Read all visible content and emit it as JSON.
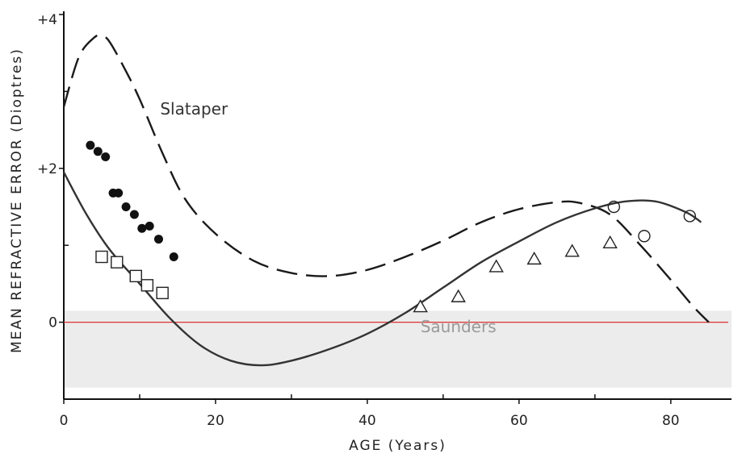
{
  "chart_data": {
    "type": "line",
    "title": "",
    "xlabel": "AGE (Years)",
    "ylabel": "MEAN REFRACTIVE ERROR (Dioptres)",
    "xlim": [
      0,
      88
    ],
    "ylim": [
      -1,
      4
    ],
    "x_ticks": [
      0,
      20,
      40,
      60,
      80
    ],
    "x_tick_labels": [
      "0",
      "20",
      "40",
      "60",
      "80"
    ],
    "x_minor_ticks": [
      10,
      30,
      50,
      70
    ],
    "y_ticks": [
      0,
      2,
      4
    ],
    "y_tick_labels": [
      "0",
      "+2",
      "+4"
    ],
    "y_minor_ticks": [
      1,
      3
    ],
    "grid": false,
    "shaded_band": {
      "y_from": -0.85,
      "y_to": 0.15,
      "color": "#ececec"
    },
    "zero_line_color": "#e03030",
    "curve_labels": [
      "Slataper",
      "Saunders"
    ],
    "series": [
      {
        "name": "Slataper",
        "style": "dashed",
        "x": [
          0,
          2,
          4,
          5,
          6,
          8,
          10,
          13,
          16,
          20,
          25,
          30,
          35,
          40,
          45,
          50,
          55,
          60,
          65,
          68,
          72,
          76,
          80,
          83,
          85
        ],
        "y": [
          2.8,
          3.45,
          3.7,
          3.72,
          3.65,
          3.3,
          2.9,
          2.2,
          1.6,
          1.15,
          0.8,
          0.64,
          0.6,
          0.68,
          0.85,
          1.06,
          1.3,
          1.47,
          1.56,
          1.55,
          1.4,
          1.0,
          0.55,
          0.2,
          0.0
        ]
      },
      {
        "name": "Saunders",
        "style": "solid",
        "x": [
          0,
          3,
          6,
          10,
          14,
          18,
          22,
          26,
          30,
          35,
          40,
          45,
          50,
          55,
          60,
          65,
          70,
          74,
          78,
          82,
          84
        ],
        "y": [
          1.95,
          1.4,
          0.95,
          0.5,
          0.05,
          -0.3,
          -0.5,
          -0.56,
          -0.5,
          -0.35,
          -0.15,
          0.12,
          0.45,
          0.78,
          1.05,
          1.3,
          1.48,
          1.57,
          1.57,
          1.43,
          1.3
        ]
      },
      {
        "name": "",
        "marker": "filled-circle",
        "x": [
          3.5,
          4.5,
          5.5,
          6.5,
          7.2,
          8.2,
          9.3,
          10.3,
          11.3,
          12.5,
          14.5
        ],
        "y": [
          2.3,
          2.22,
          2.15,
          1.68,
          1.68,
          1.5,
          1.4,
          1.22,
          1.25,
          1.08,
          0.85
        ]
      },
      {
        "name": "",
        "marker": "open-square",
        "x": [
          5,
          7,
          9.5,
          11,
          13
        ],
        "y": [
          0.85,
          0.78,
          0.6,
          0.48,
          0.38
        ]
      },
      {
        "name": "",
        "marker": "open-triangle",
        "x": [
          47,
          52,
          57,
          62,
          67,
          72
        ],
        "y": [
          0.2,
          0.33,
          0.72,
          0.82,
          0.92,
          1.03
        ]
      },
      {
        "name": "",
        "marker": "open-circle",
        "x": [
          72.5,
          76.5,
          82.5
        ],
        "y": [
          1.5,
          1.12,
          1.38
        ]
      }
    ]
  }
}
